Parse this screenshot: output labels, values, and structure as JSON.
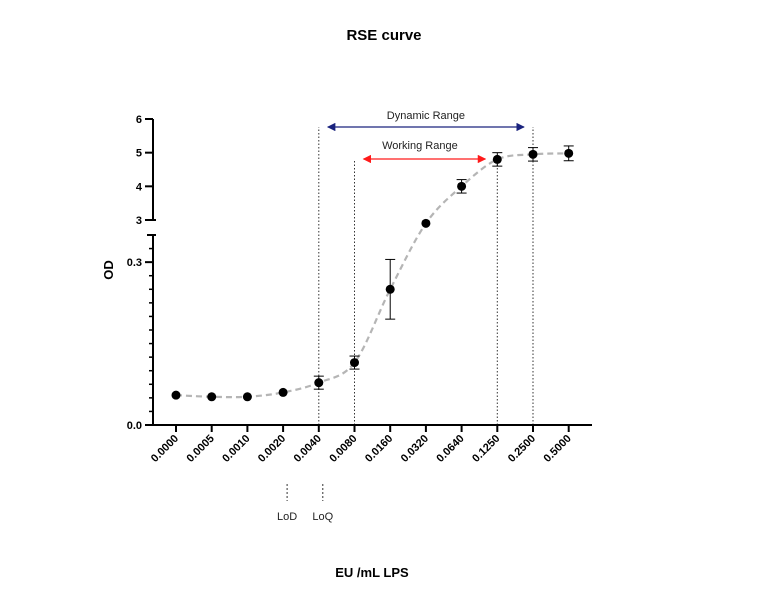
{
  "chart_data": {
    "type": "scatter",
    "title": "RSE curve",
    "xlabel": "EU /mL LPS",
    "ylabel": "OD",
    "categories": [
      "0.0000",
      "0.0005",
      "0.0010",
      "0.0020",
      "0.0040",
      "0.0080",
      "0.0160",
      "0.0320",
      "0.0640",
      "0.1250",
      "0.2500",
      "0.5000"
    ],
    "y_axis": {
      "segments": [
        {
          "range": [
            0,
            0.35
          ],
          "ticks": [
            {
              "value": 0,
              "label": "0.0"
            },
            {
              "value": 0.3,
              "label": "0.3"
            }
          ]
        },
        {
          "range": [
            3,
            6
          ],
          "ticks": [
            {
              "value": 3,
              "label": "3"
            },
            {
              "value": 4,
              "label": "4"
            },
            {
              "value": 5,
              "label": "5"
            },
            {
              "value": 6,
              "label": "6"
            }
          ]
        }
      ]
    },
    "series": [
      {
        "values": [
          0.055,
          0.052,
          0.052,
          0.06,
          0.078,
          0.115,
          0.25,
          2.9,
          4.0,
          4.8,
          4.95,
          4.98
        ],
        "errors": [
          0.004,
          0.003,
          0.003,
          0.004,
          0.012,
          0.012,
          0.055,
          0.05,
          0.2,
          0.2,
          0.2,
          0.22
        ],
        "color": "#000000",
        "line_color": "#b5b5b5",
        "line_style": "dashed"
      }
    ],
    "annotations": {
      "dynamic_range": {
        "label": "Dynamic Range",
        "from": "0.0040",
        "to": "0.2500",
        "color": "#1a237e"
      },
      "working_range": {
        "label": "Working Range",
        "from": "0.0080",
        "to": "0.1250",
        "color": "#ff1a1a"
      },
      "lod": {
        "label": "LoD",
        "at": "0.0020"
      },
      "loq": {
        "label": "LoQ",
        "at": "0.0040"
      }
    }
  }
}
